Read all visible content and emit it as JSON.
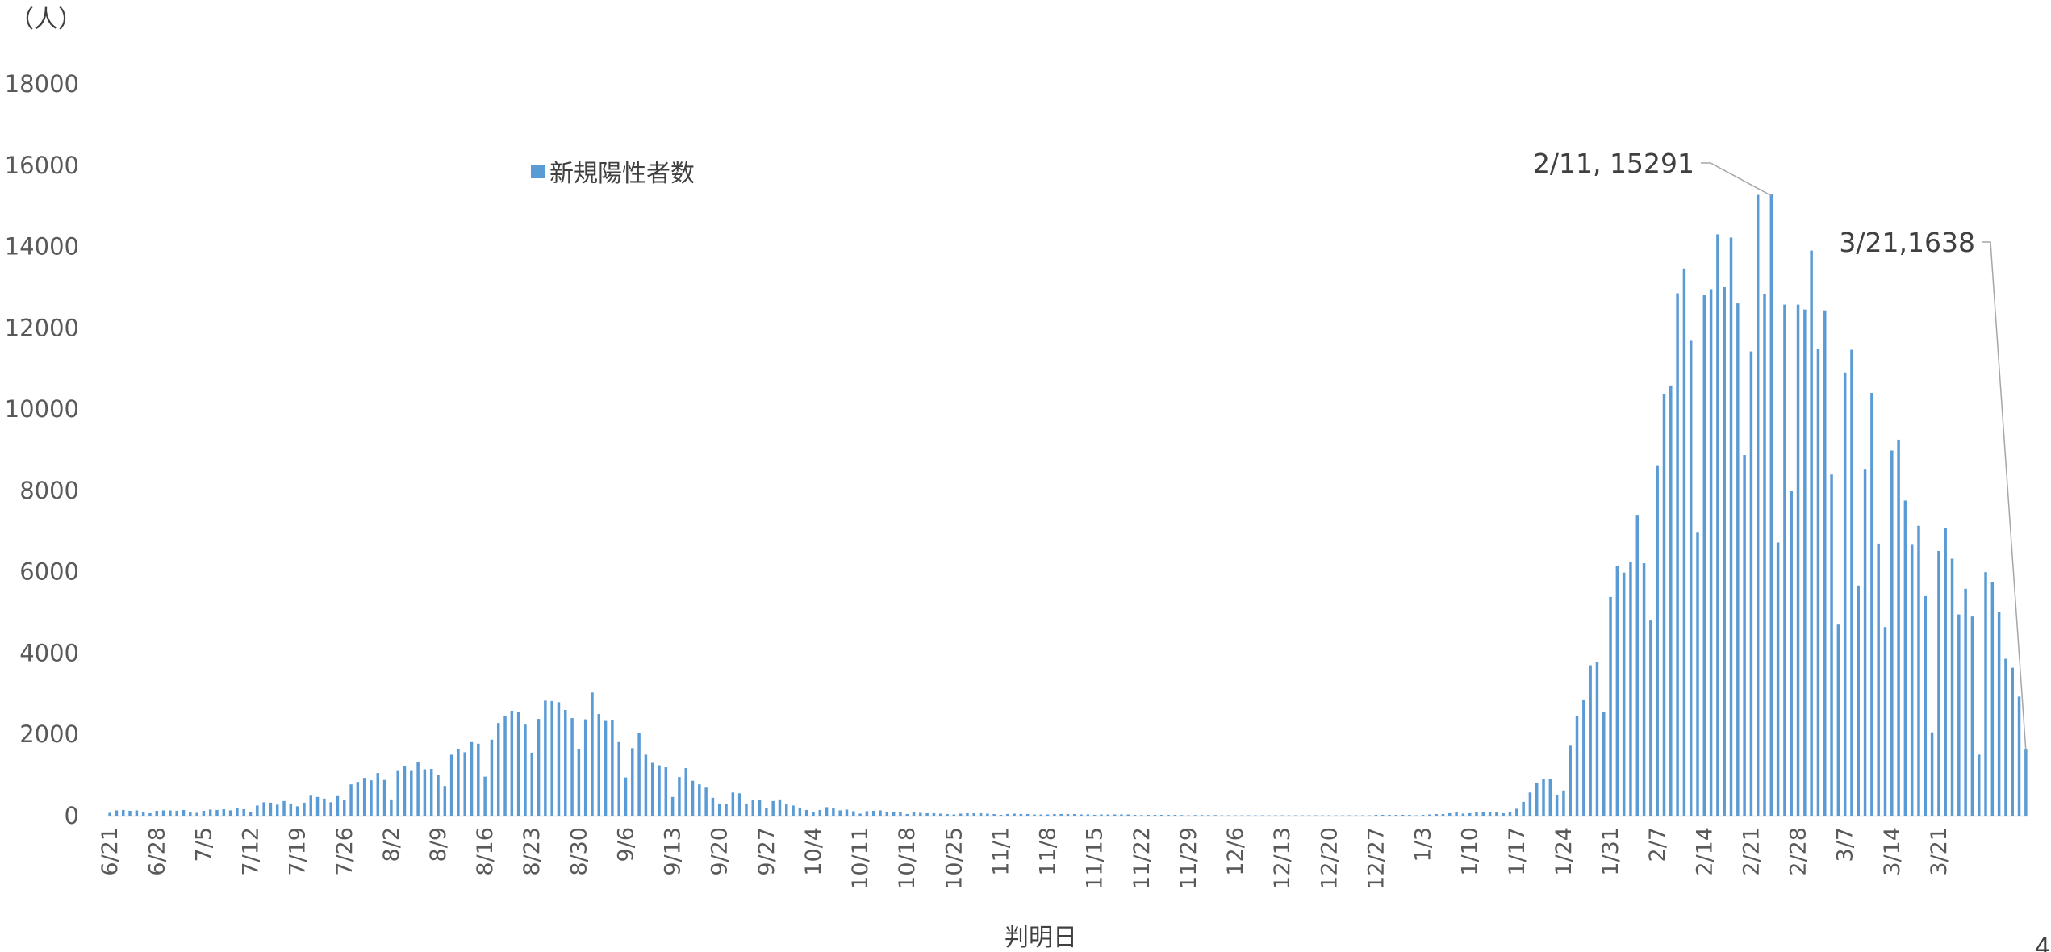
{
  "chart_data": {
    "type": "bar",
    "ylabel": "（人）",
    "xlabel": "判明日",
    "ylim": [
      0,
      18000
    ],
    "yticks": [
      0,
      2000,
      4000,
      6000,
      8000,
      10000,
      12000,
      14000,
      16000,
      18000
    ],
    "xtick_labels": [
      "6/21",
      "6/28",
      "7/5",
      "7/12",
      "7/19",
      "7/26",
      "8/2",
      "8/9",
      "8/16",
      "8/23",
      "8/30",
      "9/6",
      "9/13",
      "9/20",
      "9/27",
      "10/4",
      "10/11",
      "10/18",
      "10/25",
      "11/1",
      "11/8",
      "11/15",
      "11/22",
      "11/29",
      "12/6",
      "12/13",
      "12/20",
      "12/27",
      "1/3",
      "1/10",
      "1/17",
      "1/24",
      "1/31",
      "2/7",
      "2/14",
      "2/21",
      "2/28",
      "3/7",
      "3/14",
      "3/21"
    ],
    "legend": {
      "position": "top-left",
      "entries": [
        "新規陽性者数"
      ]
    },
    "grid": false,
    "bar_color": "#5b9bd5",
    "annotations": [
      {
        "text": "2/11, 15291",
        "x": "2/11",
        "y": 15291
      },
      {
        "text": "3/21,1638",
        "x": "3/21",
        "y": 1638
      }
    ],
    "series": [
      {
        "name": "新規陽性者数",
        "values": [
          70,
          130,
          140,
          120,
          130,
          100,
          60,
          120,
          130,
          130,
          120,
          140,
          90,
          70,
          120,
          150,
          140,
          160,
          130,
          180,
          160,
          90,
          250,
          330,
          320,
          270,
          360,
          300,
          230,
          320,
          490,
          460,
          420,
          330,
          480,
          380,
          770,
          830,
          930,
          870,
          1050,
          880,
          400,
          1100,
          1230,
          1100,
          1310,
          1140,
          1150,
          1010,
          730,
          1500,
          1630,
          1560,
          1810,
          1770,
          960,
          1870,
          2280,
          2450,
          2580,
          2550,
          2240,
          1550,
          2380,
          2830,
          2820,
          2790,
          2600,
          2400,
          1630,
          2370,
          3030,
          2500,
          2330,
          2360,
          1810,
          940,
          1660,
          2040,
          1500,
          1300,
          1240,
          1190,
          460,
          950,
          1170,
          860,
          770,
          690,
          440,
          300,
          280,
          570,
          550,
          300,
          390,
          380,
          190,
          360,
          400,
          280,
          250,
          200,
          140,
          100,
          140,
          210,
          180,
          130,
          150,
          110,
          50,
          110,
          120,
          130,
          100,
          100,
          80,
          40,
          80,
          70,
          60,
          60,
          50,
          40,
          30,
          50,
          60,
          60,
          60,
          50,
          40,
          20,
          40,
          50,
          40,
          40,
          30,
          30,
          30,
          40,
          40,
          40,
          40,
          30,
          30,
          20,
          30,
          30,
          30,
          30,
          30,
          20,
          15,
          20,
          20,
          20,
          20,
          20,
          15,
          10,
          15,
          15,
          15,
          15,
          10,
          10,
          10,
          10,
          10,
          10,
          10,
          10,
          10,
          10,
          10,
          10,
          10,
          10,
          10,
          10,
          10,
          10,
          10,
          10,
          10,
          10,
          10,
          20,
          20,
          20,
          20,
          20,
          20,
          10,
          20,
          30,
          40,
          40,
          60,
          80,
          50,
          60,
          80,
          80,
          80,
          90,
          60,
          80,
          170,
          340,
          570,
          800,
          900,
          900,
          500,
          620,
          1720,
          2450,
          2840,
          3700,
          3770,
          2560,
          5380,
          6140,
          5980,
          6240,
          7400,
          6210,
          4800,
          8620,
          10380,
          10580,
          12850,
          13460,
          11680,
          6960,
          12800,
          12950,
          14300,
          13000,
          14220,
          12600,
          8870,
          11420,
          15270,
          12830,
          15291,
          6720,
          12570,
          7990,
          12570,
          12450,
          13900,
          11490,
          12430,
          8390,
          4700,
          10900,
          11460,
          5660,
          8530,
          10400,
          6690,
          4640,
          8980,
          9250,
          7750,
          6680,
          7130,
          5400,
          2050,
          6510,
          7070,
          6320,
          4950,
          5580,
          4900,
          1500,
          5990,
          5740,
          5000,
          3860,
          3640,
          2930,
          1638
        ]
      }
    ]
  },
  "page": {
    "page_number": "4"
  }
}
